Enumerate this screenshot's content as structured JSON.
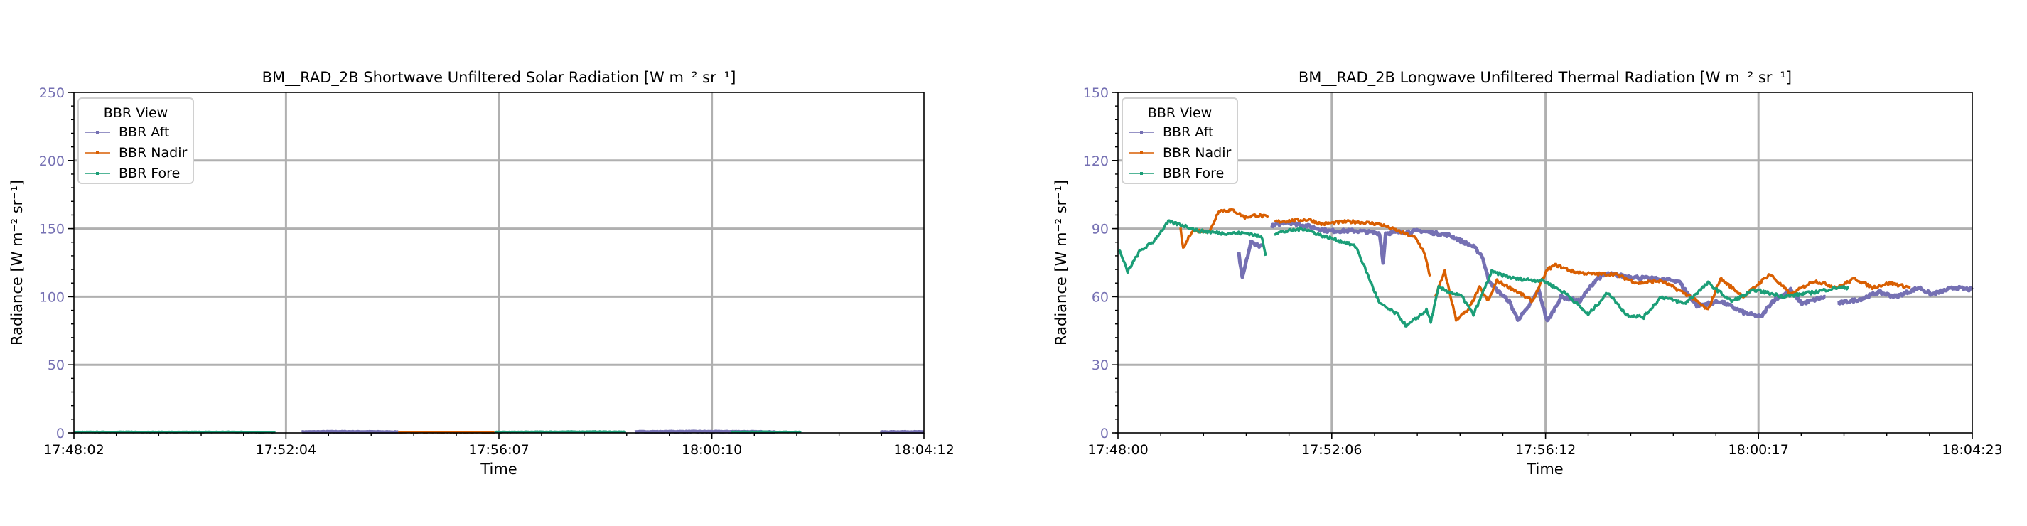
{
  "colors": {
    "aft": "#7570b3",
    "nadir": "#d95f02",
    "fore": "#1b9e77",
    "ytick": "#7570b3",
    "grid": "#b0b0b0"
  },
  "chart_data": [
    {
      "type": "line",
      "title": "BM__RAD_2B Shortwave Unfiltered Solar Radiation [W m⁻² sr⁻¹]",
      "xlabel": "Time",
      "ylabel": "Radiance [W m⁻² sr⁻¹]",
      "x_unit": "seconds since 17:48:02",
      "xlim": [
        0,
        970
      ],
      "ylim": [
        0,
        250
      ],
      "xticks": [
        0,
        242,
        485,
        728,
        970
      ],
      "xtick_labels": [
        "17:48:02",
        "17:52:04",
        "17:56:07",
        "18:00:10",
        "18:04:12"
      ],
      "yticks": [
        0,
        50,
        100,
        150,
        200,
        250
      ],
      "ytick_labels": [
        "0",
        "50",
        "100",
        "150",
        "200",
        "250"
      ],
      "y_minor_step": 10,
      "grid": true,
      "legend": {
        "title": "BBR View",
        "placement": "top-left"
      },
      "series": [
        {
          "name": "BBR Aft",
          "key": "aft",
          "segments": [
            [
              [
                260,
                0.6
              ],
              [
                300,
                0.8
              ],
              [
                340,
                0.7
              ],
              [
                370,
                0.5
              ]
            ],
            [
              [
                640,
                0.7
              ],
              [
                700,
                0.9
              ],
              [
                760,
                0.8
              ],
              [
                800,
                0.6
              ]
            ],
            [
              [
                920,
                0.5
              ],
              [
                945,
                0.7
              ],
              [
                970,
                0.6
              ]
            ]
          ]
        },
        {
          "name": "BBR Nadir",
          "key": "nadir",
          "segments": [
            [
              [
                370,
                0.4
              ],
              [
                420,
                0.5
              ],
              [
                480,
                0.4
              ]
            ]
          ]
        },
        {
          "name": "BBR Fore",
          "key": "fore",
          "segments": [
            [
              [
                0,
                0.6
              ],
              [
                60,
                0.7
              ],
              [
                120,
                0.6
              ],
              [
                180,
                0.7
              ],
              [
                230,
                0.5
              ]
            ],
            [
              [
                480,
                0.6
              ],
              [
                540,
                0.8
              ],
              [
                600,
                0.9
              ],
              [
                630,
                0.7
              ]
            ],
            [
              [
                750,
                0.7
              ],
              [
                790,
                0.8
              ],
              [
                830,
                0.6
              ]
            ]
          ]
        }
      ]
    },
    {
      "type": "line",
      "title": "BM__RAD_2B Longwave Unfiltered Thermal Radiation [W m⁻² sr⁻¹]",
      "xlabel": "Time",
      "ylabel": "Radiance [W m⁻² sr⁻¹]",
      "x_unit": "seconds since 17:48:00",
      "xlim": [
        0,
        983
      ],
      "ylim": [
        0,
        150
      ],
      "xticks": [
        0,
        246,
        492,
        737,
        983
      ],
      "xtick_labels": [
        "17:48:00",
        "17:52:06",
        "17:56:12",
        "18:00:17",
        "18:04:23"
      ],
      "yticks": [
        0,
        30,
        60,
        90,
        120,
        150
      ],
      "ytick_labels": [
        "0",
        "30",
        "60",
        "90",
        "120",
        "150"
      ],
      "y_minor_step": 6,
      "grid": true,
      "legend": {
        "title": "BBR View",
        "placement": "top-left"
      },
      "series": [
        {
          "name": "BBR Aft",
          "key": "aft",
          "segments": [
            [
              [
                139,
                79
              ],
              [
                143,
                68
              ],
              [
                153,
                84
              ],
              [
                166,
                82
              ]
            ],
            [
              [
                177,
                91
              ],
              [
                193,
                93
              ],
              [
                220,
                91
              ],
              [
                241,
                89
              ],
              [
                274,
                89
              ],
              [
                301,
                88
              ],
              [
                305,
                75
              ],
              [
                308,
                88
              ],
              [
                349,
                89
              ],
              [
                382,
                87
              ],
              [
                409,
                82
              ],
              [
                419,
                78
              ],
              [
                426,
                68
              ],
              [
                433,
                64
              ],
              [
                450,
                58
              ],
              [
                460,
                50
              ],
              [
                470,
                54
              ],
              [
                484,
                63
              ],
              [
                494,
                49
              ],
              [
                510,
                60
              ],
              [
                531,
                58
              ],
              [
                551,
                68
              ],
              [
                564,
                70
              ],
              [
                585,
                69
              ],
              [
                612,
                68
              ],
              [
                645,
                67
              ],
              [
                666,
                56
              ],
              [
                693,
                58
              ],
              [
                720,
                53
              ],
              [
                740,
                51
              ],
              [
                753,
                58
              ],
              [
                774,
                63
              ],
              [
                787,
                57
              ],
              [
                814,
                60
              ]
            ],
            [
              [
                828,
                57
              ],
              [
                855,
                59
              ],
              [
                875,
                62
              ],
              [
                895,
                60
              ],
              [
                922,
                64
              ],
              [
                936,
                61
              ],
              [
                963,
                64
              ],
              [
                983,
                63
              ]
            ]
          ]
        },
        {
          "name": "BBR Nadir",
          "key": "nadir",
          "segments": [
            [
              [
                72,
                90
              ],
              [
                75,
                81
              ],
              [
                85,
                89
              ],
              [
                106,
                89
              ],
              [
                116,
                98
              ],
              [
                133,
                98
              ],
              [
                146,
                95
              ],
              [
                160,
                96
              ],
              [
                173,
                95
              ]
            ],
            [
              [
                180,
                93
              ],
              [
                220,
                94
              ],
              [
                234,
                92
              ],
              [
                261,
                93
              ],
              [
                274,
                93
              ],
              [
                301,
                92
              ],
              [
                322,
                89
              ],
              [
                342,
                86
              ],
              [
                352,
                80
              ],
              [
                359,
                69
              ]
            ],
            [
              [
                365,
                60
              ],
              [
                376,
                71
              ],
              [
                389,
                50
              ],
              [
                403,
                54
              ],
              [
                416,
                64
              ],
              [
                426,
                58
              ],
              [
                436,
                67
              ],
              [
                456,
                63
              ],
              [
                477,
                58
              ],
              [
                494,
                72
              ],
              [
                504,
                74
              ],
              [
                524,
                71
              ],
              [
                544,
                70
              ],
              [
                571,
                70
              ],
              [
                598,
                66
              ],
              [
                625,
                67
              ],
              [
                659,
                60
              ],
              [
                679,
                54
              ],
              [
                693,
                68
              ],
              [
                720,
                60
              ],
              [
                750,
                70
              ],
              [
                774,
                61
              ],
              [
                801,
                67
              ],
              [
                828,
                64
              ],
              [
                848,
                68
              ],
              [
                868,
                64
              ],
              [
                888,
                66
              ],
              [
                912,
                64
              ]
            ]
          ]
        },
        {
          "name": "BBR Fore",
          "key": "fore",
          "segments": [
            [
              [
                1,
                81
              ],
              [
                11,
                71
              ],
              [
                25,
                80
              ],
              [
                40,
                84
              ],
              [
                58,
                93
              ],
              [
                79,
                91
              ],
              [
                92,
                89
              ],
              [
                120,
                88
              ],
              [
                150,
                88
              ],
              [
                166,
                86
              ],
              [
                170,
                78
              ]
            ],
            [
              [
                180,
                88
              ],
              [
                214,
                90
              ],
              [
                234,
                87
              ],
              [
                261,
                84
              ],
              [
                274,
                82
              ],
              [
                288,
                69
              ],
              [
                301,
                57
              ],
              [
                322,
                52
              ],
              [
                332,
                47
              ],
              [
                355,
                54
              ],
              [
                360,
                49
              ],
              [
                369,
                64
              ],
              [
                396,
                60
              ],
              [
                409,
                52
              ],
              [
                430,
                71
              ],
              [
                456,
                68
              ],
              [
                490,
                67
              ],
              [
                517,
                61
              ],
              [
                541,
                52
              ],
              [
                564,
                62
              ],
              [
                585,
                52
              ],
              [
                605,
                51
              ],
              [
                625,
                60
              ],
              [
                652,
                57
              ],
              [
                679,
                66
              ],
              [
                706,
                58
              ],
              [
                733,
                63
              ],
              [
                767,
                60
              ],
              [
                801,
                62
              ],
              [
                828,
                64
              ],
              [
                841,
                64
              ]
            ]
          ]
        }
      ]
    }
  ]
}
